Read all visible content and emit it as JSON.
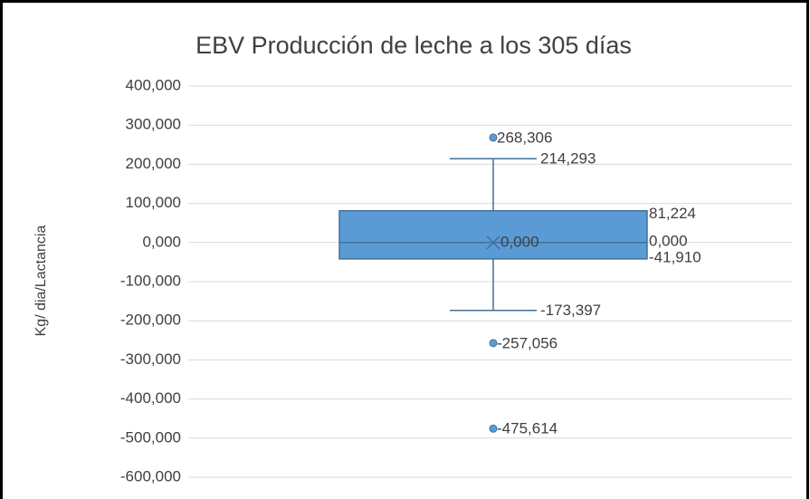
{
  "chart_data": {
    "type": "box",
    "title": "EBV Producción de leche a los 305 días",
    "y_label": "Kg/ dia/Lactancia",
    "color": "#5b9bd5",
    "ylim": [
      -600,
      400
    ],
    "yticks": [
      {
        "value": -600,
        "label": "-600,000"
      },
      {
        "value": -500,
        "label": "-500,000"
      },
      {
        "value": -400,
        "label": "-400,000"
      },
      {
        "value": -300,
        "label": "-300,000"
      },
      {
        "value": -200,
        "label": "-200,000"
      },
      {
        "value": -100,
        "label": "-100,000"
      },
      {
        "value": 0,
        "label": "0,000"
      },
      {
        "value": 100,
        "label": "100,000"
      },
      {
        "value": 200,
        "label": "200,000"
      },
      {
        "value": 300,
        "label": "300,000"
      },
      {
        "value": 400,
        "label": "400,000"
      }
    ],
    "grid": true,
    "box": {
      "min": -173.397,
      "q1": -41.91,
      "median": 0,
      "q3": 81.224,
      "max": 214.293,
      "mean": 0,
      "outliers": [
        268.306,
        -257.056,
        -475.614
      ]
    },
    "value_labels": {
      "min": "-173,397",
      "q1": "-41,910",
      "median": "0,000",
      "q3": "81,224",
      "max": "214,293",
      "mean": "0,000",
      "outliers": [
        "268,306",
        "-257,056",
        "-475,614"
      ]
    }
  }
}
